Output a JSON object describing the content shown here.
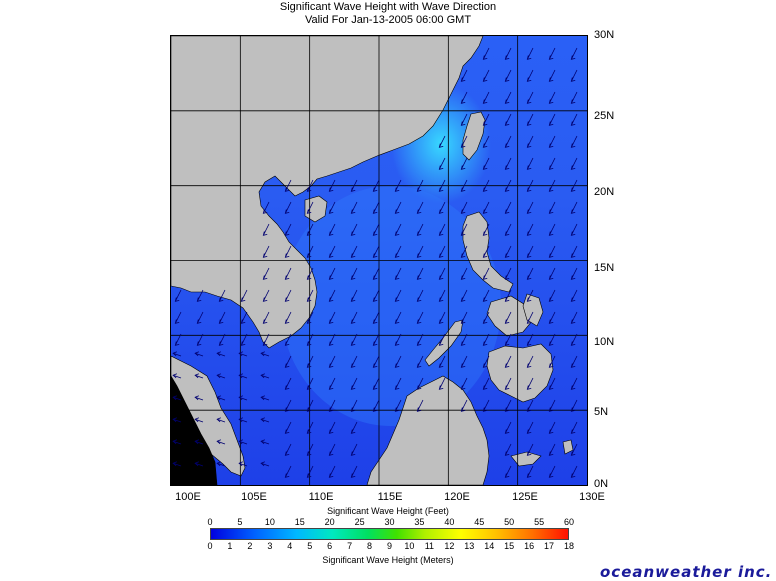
{
  "title": {
    "line1": "Significant Wave Height with Wave Direction",
    "line2": "Valid For Jan-13-2005 06:00 GMT"
  },
  "map": {
    "lat_labels": [
      "30N",
      "25N",
      "20N",
      "15N",
      "10N",
      "5N",
      "0N"
    ],
    "lon_labels": [
      "100E",
      "105E",
      "110E",
      "115E",
      "120E",
      "125E",
      "130E"
    ],
    "extent": {
      "lon_min": 100,
      "lon_max": 130,
      "lat_min": 0,
      "lat_max": 30
    },
    "colors": {
      "land": "#bfbfbf",
      "sea_low": "#1e3cf0",
      "sea_mid": "#2a6af8",
      "sea_high": "#34c8ff",
      "arrow": "#000060",
      "grid": "#000000"
    }
  },
  "legend": {
    "feet_title": "Significant Wave Height (Feet)",
    "meters_title": "Significant Wave Height (Meters)",
    "feet_ticks": [
      "0",
      "5",
      "10",
      "15",
      "20",
      "25",
      "30",
      "35",
      "40",
      "45",
      "50",
      "55",
      "60"
    ],
    "meter_ticks": [
      "0",
      "1",
      "2",
      "3",
      "4",
      "5",
      "6",
      "7",
      "8",
      "9",
      "10",
      "11",
      "12",
      "13",
      "14",
      "15",
      "16",
      "17",
      "18"
    ]
  },
  "brand": "oceanweather inc."
}
